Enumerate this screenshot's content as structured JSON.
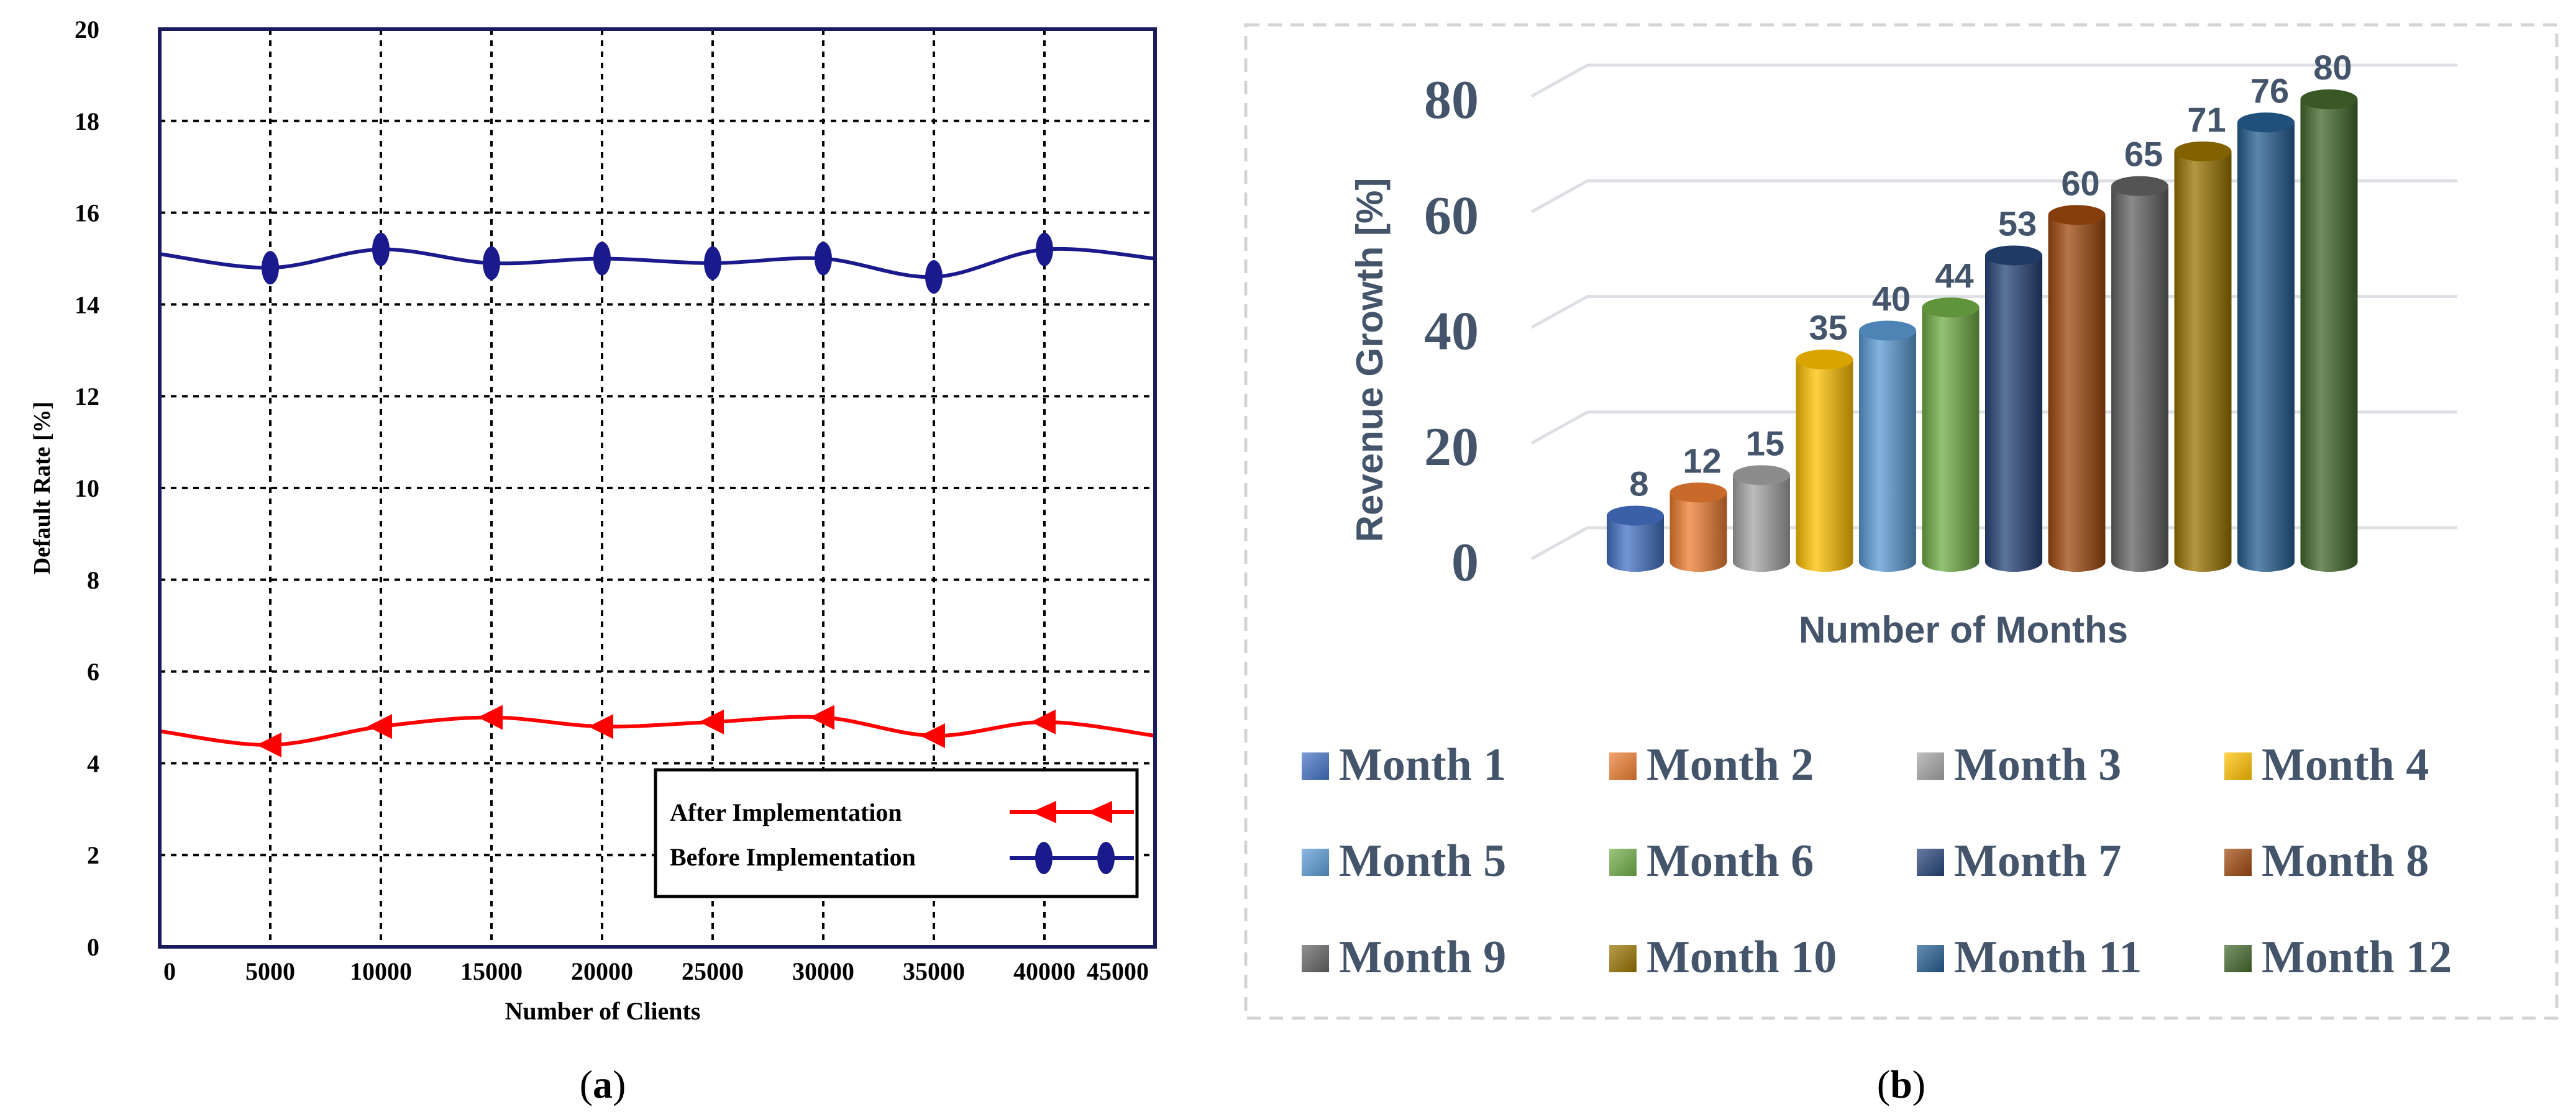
{
  "chart_data": [
    {
      "type": "line",
      "panel_label": "(a)",
      "panel_letter": "a",
      "xlabel": "Number of Clients",
      "ylabel": "Default Rate [%]",
      "xlim": [
        0,
        45000
      ],
      "ylim": [
        0,
        20
      ],
      "x_ticks": [
        0,
        5000,
        10000,
        15000,
        20000,
        25000,
        30000,
        35000,
        40000,
        45000
      ],
      "y_ticks": [
        0,
        2,
        4,
        6,
        8,
        10,
        12,
        14,
        16,
        18,
        20
      ],
      "x_tick_labels": [
        "0",
        "5000",
        "10000",
        "15000",
        "20000",
        "25000",
        "30000",
        "35000",
        "40000",
        "45000"
      ],
      "y_tick_labels": [
        "0",
        "2",
        "4",
        "6",
        "8",
        "10",
        "12",
        "14",
        "16",
        "18",
        "20"
      ],
      "grid": true,
      "legend_position": "bottom-right",
      "series": [
        {
          "name": "After Implementation",
          "color": "#ff0000",
          "marker": "triangle",
          "x": [
            0,
            5000,
            10000,
            15000,
            20000,
            25000,
            30000,
            35000,
            40000,
            45000
          ],
          "y": [
            4.7,
            4.4,
            4.8,
            5.0,
            4.8,
            4.9,
            5.0,
            4.6,
            4.9,
            4.6
          ]
        },
        {
          "name": "Before Implementation",
          "color": "#1a1a8c",
          "marker": "ellipse",
          "x": [
            0,
            5000,
            10000,
            15000,
            20000,
            25000,
            30000,
            35000,
            40000,
            45000
          ],
          "y": [
            15.1,
            14.8,
            15.2,
            14.9,
            15.0,
            14.9,
            15.0,
            14.6,
            15.2,
            15.0
          ]
        }
      ]
    },
    {
      "type": "bar",
      "panel_label": "(b)",
      "panel_letter": "b",
      "xlabel": "Number of Months",
      "ylabel": "Revenue Growth [%]",
      "ylim": [
        0,
        80
      ],
      "y_ticks": [
        0,
        20,
        40,
        60,
        80
      ],
      "y_tick_labels": [
        "0",
        "20",
        "40",
        "60",
        "80"
      ],
      "grid": true,
      "legend_position": "bottom",
      "categories": [
        "Month 1",
        "Month 2",
        "Month 3",
        "Month 4",
        "Month 5",
        "Month 6",
        "Month 7",
        "Month 8",
        "Month 9",
        "Month 10",
        "Month 11",
        "Month 12"
      ],
      "legend_labels": [
        "Month 1",
        "Month 2",
        "Month 3",
        " Month 4",
        "Month 5",
        "Month 6",
        "Month 7",
        "Month 8",
        "Month 9",
        "Month 10",
        "Month 11",
        "Month 12"
      ],
      "values": [
        8,
        12,
        15,
        35,
        40,
        44,
        53,
        60,
        65,
        71,
        76,
        80
      ],
      "value_labels": [
        "8",
        "12",
        "15",
        "35",
        "40",
        "44",
        "53",
        "60",
        "65",
        "71",
        "76",
        "80"
      ],
      "colors": [
        "#4472c4",
        "#ed7d31",
        "#a5a5a5",
        "#ffc000",
        "#5b9bd5",
        "#70ad47",
        "#264478",
        "#9e480e",
        "#636363",
        "#997300",
        "#255e91",
        "#43682b"
      ]
    }
  ]
}
